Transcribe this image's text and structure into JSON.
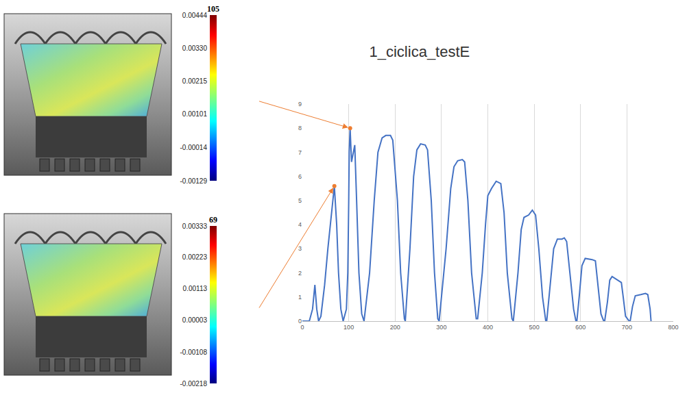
{
  "chart_data": [
    {
      "type": "line",
      "title": "1_ciclica_testE",
      "xlim": [
        0,
        800
      ],
      "xticks": [
        0,
        100,
        200,
        300,
        400,
        500,
        600,
        700,
        800
      ],
      "ylim": [
        0,
        9
      ],
      "yticks": [
        0,
        1,
        2,
        3,
        4,
        5,
        6,
        7,
        8,
        9
      ],
      "grid": "x",
      "series": [
        {
          "type": "line",
          "color": "#4472c4",
          "line_style": "solid",
          "x": [
            0,
            15,
            22,
            27,
            31,
            35,
            40,
            48,
            55,
            62,
            66,
            69,
            74,
            78,
            83,
            88,
            95,
            98,
            100,
            101,
            103,
            106,
            109,
            113,
            117,
            122,
            128,
            133,
            145,
            155,
            163,
            172,
            180,
            190,
            195,
            205,
            212,
            220,
            222,
            232,
            240,
            247,
            255,
            265,
            270,
            278,
            285,
            292,
            295,
            310,
            320,
            327,
            335,
            345,
            350,
            357,
            365,
            375,
            378,
            388,
            395,
            400,
            408,
            418,
            428,
            435,
            442,
            452,
            455,
            465,
            472,
            478,
            488,
            496,
            503,
            510,
            518,
            525,
            527,
            535,
            542,
            550,
            560,
            565,
            570,
            577,
            585,
            590,
            592,
            598,
            603,
            610,
            625,
            632,
            637,
            644,
            650,
            652,
            658,
            663,
            668,
            680,
            688,
            692,
            697,
            705,
            707,
            712,
            718,
            730,
            740,
            745,
            750,
            752
          ],
          "values": [
            0,
            0,
            0.5,
            1.5,
            0.5,
            0,
            0.2,
            1.5,
            3,
            4.3,
            5,
            5.6,
            4,
            2,
            0.5,
            0,
            0.5,
            2,
            5,
            7,
            8.0,
            6.6,
            6.9,
            7.3,
            5,
            2,
            0.3,
            0,
            2,
            5,
            7,
            7.6,
            7.7,
            7.7,
            7.5,
            5,
            2,
            0.1,
            0,
            3,
            6,
            7.1,
            7.35,
            7.3,
            7.1,
            5,
            2,
            0.1,
            0,
            3,
            5.5,
            6.4,
            6.65,
            6.7,
            6.6,
            5,
            2,
            0.1,
            0.1,
            2,
            4,
            5.2,
            5.5,
            5.8,
            5.7,
            4.5,
            2,
            0.1,
            0,
            2,
            3.8,
            4.3,
            4.4,
            4.6,
            4.4,
            3,
            1,
            0,
            0,
            1.5,
            3,
            3.4,
            3.4,
            3.45,
            3.3,
            2,
            0.5,
            0,
            0,
            1.2,
            2.3,
            2.6,
            2.55,
            2.5,
            1.5,
            0.3,
            0,
            0,
            0.8,
            1.7,
            1.85,
            1.7,
            1.6,
            1,
            0.2,
            0,
            0,
            0.6,
            1.05,
            1.1,
            1.15,
            1.1,
            0.5,
            0
          ]
        },
        {
          "type": "scatter",
          "color": "#ed7d31",
          "marker": "circle",
          "x": [
            103,
            69
          ],
          "values": [
            8.0,
            5.6
          ]
        }
      ]
    },
    {
      "type": "colorbar",
      "title": "105",
      "colorbar_range": [
        -0.00129,
        0.00444
      ],
      "colorbar_ticks": [
        0.00444,
        {
          "value": 0.0033,
          "label": "0.00330"
        },
        0.00215,
        0.00101,
        -0.00014,
        -0.00129
      ]
    },
    {
      "type": "colorbar",
      "title": "69",
      "colorbar_range": [
        -0.00218,
        0.00333
      ],
      "colorbar_ticks": [
        0.00333,
        0.00223,
        0.00113,
        3e-05,
        -0.00108,
        -0.00218
      ]
    }
  ]
}
